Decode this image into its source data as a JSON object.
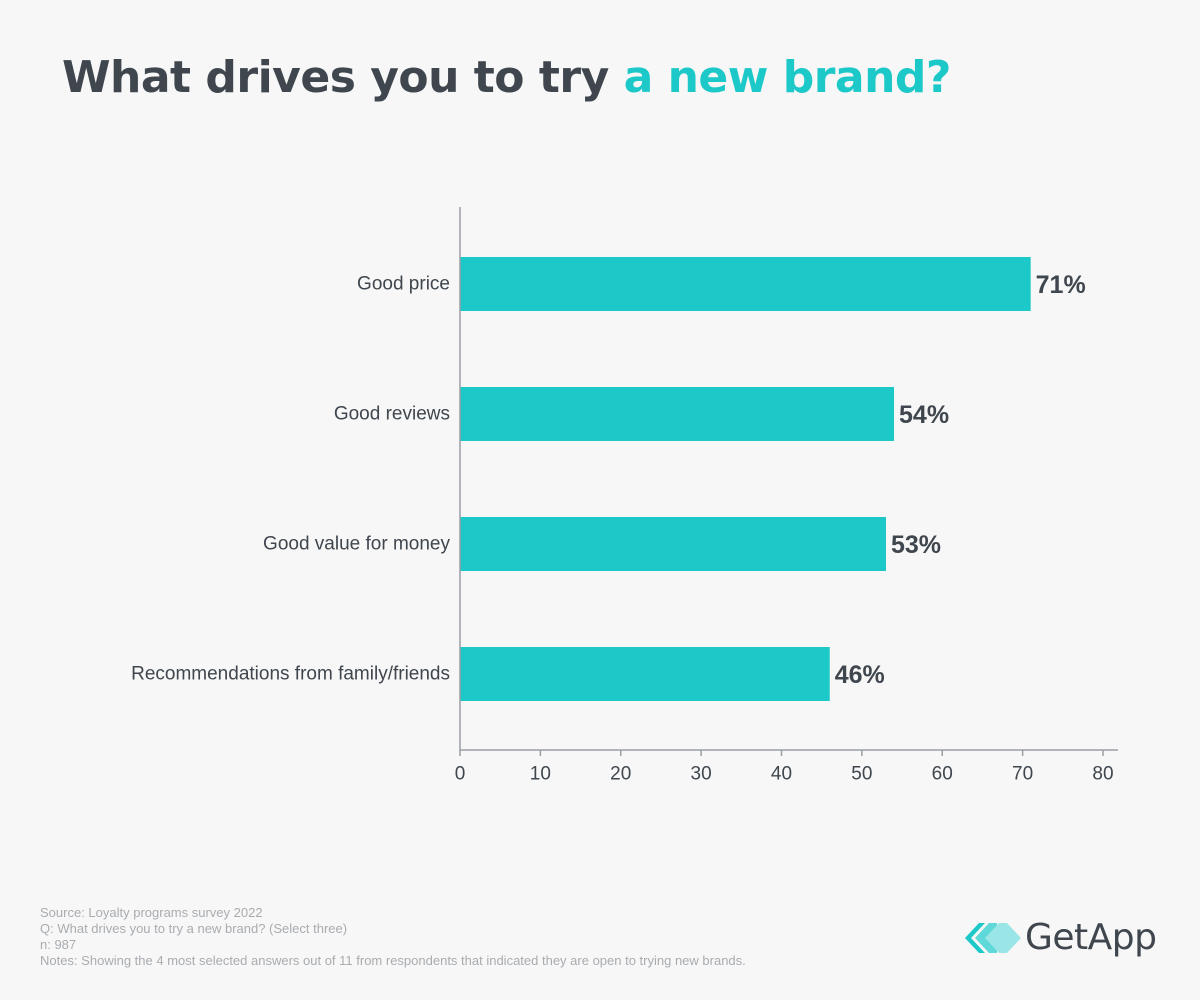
{
  "title": {
    "main": "What drives you to try ",
    "accent": "a new brand?"
  },
  "colors": {
    "bar": "#1dc8c9",
    "accent": "#1dc8c9",
    "text": "#3f464e",
    "footer": "#a8acb0",
    "background": "#f7f7f7"
  },
  "chart_data": {
    "type": "bar",
    "orientation": "horizontal",
    "categories": [
      "Good price",
      "Good reviews",
      "Good value for money",
      "Recommendations from family/friends"
    ],
    "values": [
      71,
      54,
      53,
      46
    ],
    "data_labels": [
      "71%",
      "54%",
      "53%",
      "46%"
    ],
    "xlim": [
      0,
      80
    ],
    "xticks": [
      "0",
      "10",
      "20",
      "30",
      "40",
      "50",
      "60",
      "70",
      "80"
    ],
    "grid": false
  },
  "footer": {
    "source": "Source: Loyalty programs survey 2022",
    "question": "Q: What drives you to try a new brand? (Select three)",
    "n": "n: 987",
    "notes": "Notes: Showing the 4 most selected answers out of 11 from respondents that indicated they are open to trying new brands."
  },
  "logo": {
    "name": "GetApp",
    "icon": "getapp-logo-icon"
  }
}
